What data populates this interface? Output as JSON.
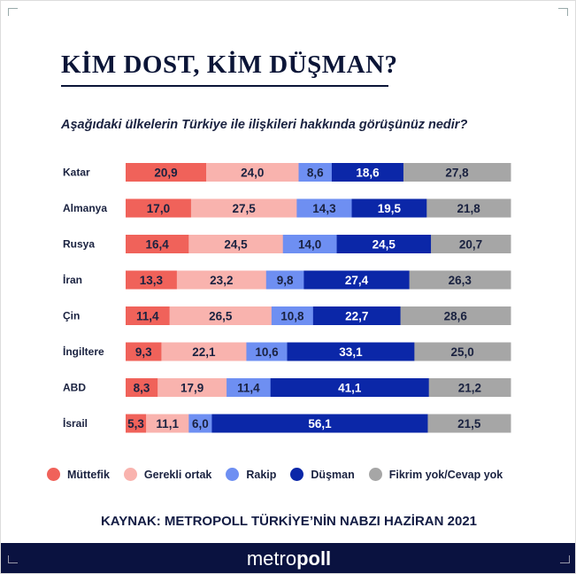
{
  "title": "KİM DOST, KİM DÜŞMAN?",
  "subtitle": "Aşağıdaki ülkelerin Türkiye ile ilişkileri hakkında görüşünüz nedir?",
  "source": "KAYNAK: METROPOLL TÜRKİYE’NİN NABZI HAZİRAN 2021",
  "footer": {
    "logo_light": "metro",
    "logo_bold": "poll"
  },
  "chart_data": {
    "type": "bar",
    "orientation": "horizontal",
    "stacked": true,
    "categories": [
      "Katar",
      "Almanya",
      "Rusya",
      "İran",
      "Çin",
      "İngiltere",
      "ABD",
      "İsrail"
    ],
    "series": [
      {
        "name": "Müttefik",
        "color": "#f0625a",
        "text_color": "#1a2240",
        "values": [
          20.9,
          17.0,
          16.4,
          13.3,
          11.4,
          9.3,
          8.3,
          5.3
        ],
        "labels": [
          "20,9",
          "17,0",
          "16,4",
          "13,3",
          "11,4",
          "9,3",
          "8,3",
          "5,3"
        ]
      },
      {
        "name": "Gerekli ortak",
        "color": "#f9b3ae",
        "text_color": "#1a2240",
        "values": [
          24.0,
          27.5,
          24.5,
          23.2,
          26.5,
          22.1,
          17.9,
          11.1
        ],
        "labels": [
          "24,0",
          "27,5",
          "24,5",
          "23,2",
          "26,5",
          "22,1",
          "17,9",
          "11,1"
        ]
      },
      {
        "name": "Rakip",
        "color": "#6e8ff2",
        "text_color": "#1a2240",
        "values": [
          8.6,
          14.3,
          14.0,
          9.8,
          10.8,
          10.6,
          11.4,
          6.0
        ],
        "labels": [
          "8,6",
          "14,3",
          "14,0",
          "9,8",
          "10,8",
          "10,6",
          "11,4",
          "6,0"
        ]
      },
      {
        "name": "Düşman",
        "color": "#0b27a8",
        "text_color": "#ffffff",
        "values": [
          18.6,
          19.5,
          24.5,
          27.4,
          22.7,
          33.1,
          41.1,
          56.1
        ],
        "labels": [
          "18,6",
          "19,5",
          "24,5",
          "27,4",
          "22,7",
          "33,1",
          "41,1",
          "56,1"
        ]
      },
      {
        "name": "Fikrim yok/Cevap yok",
        "color": "#a6a6a6",
        "text_color": "#1a2240",
        "values": [
          27.8,
          21.8,
          20.7,
          26.3,
          28.6,
          25.0,
          21.2,
          21.5
        ],
        "labels": [
          "27,8",
          "21,8",
          "20,7",
          "26,3",
          "28,6",
          "25,0",
          "21,2",
          "21,5"
        ]
      }
    ],
    "legend": "bottom",
    "grid": false
  }
}
